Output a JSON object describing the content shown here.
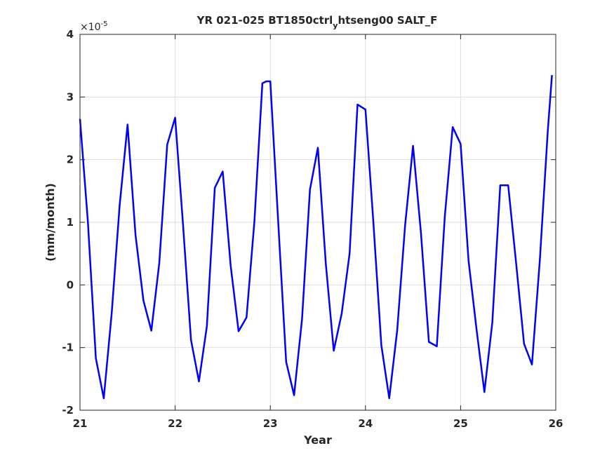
{
  "chart_data": {
    "type": "line",
    "title": {
      "main": "YR 021-025 BT1850ctrl",
      "subscript": "y",
      "rest": "htseng00 SALT_F"
    },
    "xlabel": "Year",
    "ylabel": "(mm/month)",
    "y_exponent": {
      "base": "×10",
      "power": "-5"
    },
    "xlim": [
      21,
      26
    ],
    "ylim": [
      -2,
      4
    ],
    "xticks": [
      21,
      22,
      23,
      24,
      25,
      26
    ],
    "yticks": [
      -2,
      -1,
      0,
      1,
      2,
      3,
      4
    ],
    "xtick_labels": [
      "21",
      "22",
      "23",
      "24",
      "25",
      "26"
    ],
    "ytick_labels": [
      "-2",
      "-1",
      "0",
      "1",
      "2",
      "3",
      "4"
    ],
    "grid": true,
    "line_color": "#0000ff",
    "series": [
      {
        "x": [
          21.0,
          21.083,
          21.167,
          21.25,
          21.333,
          21.417,
          21.5,
          21.583,
          21.667,
          21.75,
          21.833,
          21.917,
          22.0,
          22.083,
          22.167,
          22.25,
          22.333,
          22.417,
          22.5,
          22.583,
          22.667,
          22.75,
          22.833,
          22.917,
          22.958,
          23.0,
          23.083,
          23.167,
          23.25,
          23.333,
          23.417,
          23.5,
          23.583,
          23.667,
          23.75,
          23.833,
          23.917,
          24.0,
          24.083,
          24.167,
          24.25,
          24.333,
          24.417,
          24.5,
          24.583,
          24.667,
          24.75,
          24.833,
          24.917,
          25.0,
          25.083,
          25.167,
          25.25,
          25.333,
          25.417,
          25.5,
          25.583,
          25.667,
          25.75,
          25.833,
          25.917,
          25.96
        ],
        "values": [
          2.65,
          1.0,
          -1.17,
          -1.81,
          -0.45,
          1.27,
          2.56,
          0.8,
          -0.25,
          -0.73,
          0.35,
          2.24,
          2.67,
          0.95,
          -0.88,
          -1.54,
          -0.66,
          1.55,
          1.81,
          0.31,
          -0.74,
          -0.52,
          1.02,
          3.22,
          3.25,
          3.25,
          1.0,
          -1.23,
          -1.76,
          -0.55,
          1.52,
          2.19,
          0.34,
          -1.05,
          -0.46,
          0.5,
          2.88,
          2.8,
          1.0,
          -0.96,
          -1.81,
          -0.73,
          0.95,
          2.22,
          0.83,
          -0.91,
          -0.98,
          1.08,
          2.52,
          2.25,
          0.39,
          -0.7,
          -1.71,
          -0.6,
          1.59,
          1.59,
          0.35,
          -0.94,
          -1.27,
          0.41,
          2.47,
          3.35
        ]
      }
    ]
  }
}
